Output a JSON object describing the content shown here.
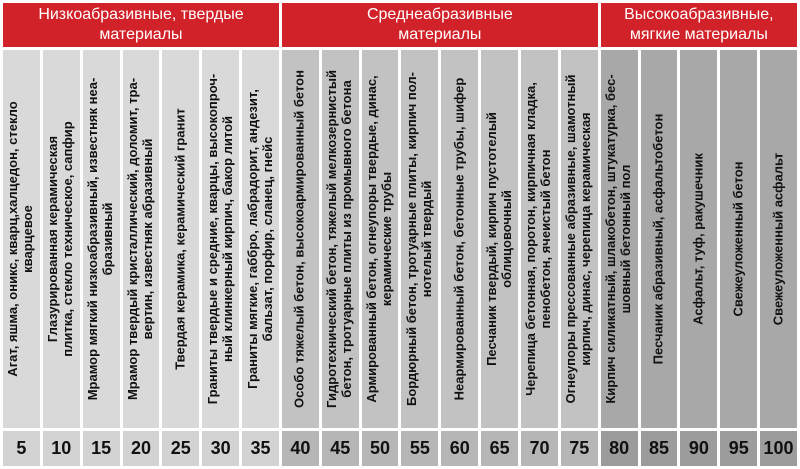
{
  "header_groups": [
    {
      "title": "Низкоабразивные, твердые\nматериалы",
      "span": 7
    },
    {
      "title": "Среднеабразивные\nматериалы",
      "span": 8
    },
    {
      "title": "Высокоабразивные,\nмягкие материалы",
      "span": 5
    }
  ],
  "colors": {
    "page_bg": "#ffffff",
    "header_bg": "#d1222a",
    "header_text": "#ffffff",
    "label_text": "#111111",
    "group1_column_bg": "#d9d9d9",
    "group1_scale_bg": "#d3d3d3",
    "group2_column_bg": "#c2c2c2",
    "group2_scale_bg": "#b6b6b6",
    "group3_column_bg": "#a8a8a8",
    "group3_scale_bg": "#9c9c9c"
  },
  "chart_data": {
    "type": "table",
    "scale_values": [
      5,
      10,
      15,
      20,
      25,
      30,
      35,
      40,
      45,
      50,
      55,
      60,
      65,
      70,
      75,
      80,
      85,
      90,
      95,
      100
    ],
    "materials": [
      "Агат, яшма, оникс, кварц,халцедон, стекло\nкварцевое",
      "Глазурированная керамическая\nплитка, стекло техническое, сапфир",
      "Мрамор мягкий низкоабразивный, известняк неа-\nбразивный",
      "Мрамор твердый кристаллический, доломит, тра-\nвертин, известняк абразивный",
      "Твердая керамика, керамический гранит",
      "Граниты твердые и средние, кварцы, высокопроч-\nный клинкерный кирпич, бакор литой",
      "Граниты мягкие, габбро, лабрадорит, андезит,\nбальзат, порфир, сланец, гнейс",
      "Особо тяжелый бетон, высокоармированный бетон",
      "Гидротехнический бетон, тяжелый мелкозернистый\nбетон, тротуарные плиты из промывного бетона",
      "Армированный бетон, огнеупоры твердые, динас,\nкерамические трубы",
      "Бордюрный бетон, тротуарные плиты, кирпич пол-\nнотелый твердый",
      "Неармированный бетон, бетонные трубы, шифер",
      "Песчаник твердый, кирпич пустотелый\nоблицовочный",
      "Черепица бетонная, поротон, кирпичная кладка,\nпенобетон, ячеистый бетон",
      "Огнеупоры прессованные абразивные, шамотный\nкирпич, динас, черепица керамическая",
      "Кирпич силикатный, шлакобетон, штукатурка, бес-\nшовный бетонный пол",
      "Песчаник абразивный, асфальтобетон",
      "Асфальт, туф, ракушечник",
      "Свежеуложенный бетон",
      "Свежеуложенный асфальт"
    ],
    "groups": [
      {
        "name": "Низкоабразивные, твердые материалы",
        "value_range": [
          5,
          35
        ],
        "column_count": 7
      },
      {
        "name": "Среднеабразивные материалы",
        "value_range": [
          40,
          75
        ],
        "column_count": 8
      },
      {
        "name": "Высокоабразивные, мягкие материалы",
        "value_range": [
          80,
          100
        ],
        "column_count": 5
      }
    ]
  }
}
